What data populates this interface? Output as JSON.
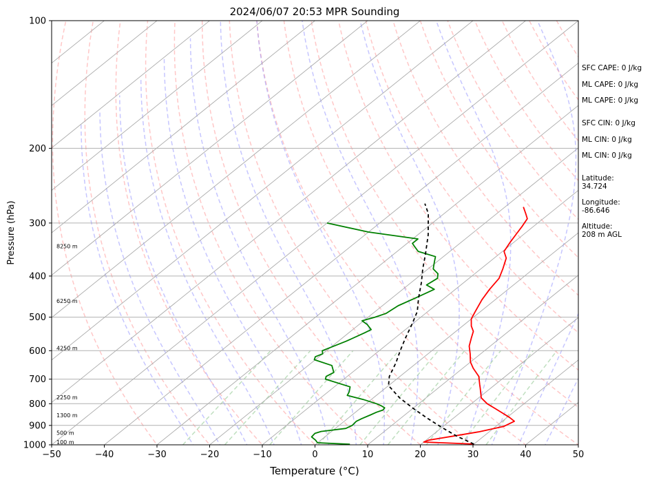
{
  "chart_data": {
    "type": "line",
    "subtype": "skew-t log-p sounding",
    "title": "2024/06/07 20:53 MPR Sounding",
    "xlabel": "Temperature (°C)",
    "ylabel": "Pressure (hPa)",
    "xlim": [
      -50,
      50
    ],
    "ylim": [
      1000,
      100
    ],
    "y_scale": "log",
    "x_ticks": [
      -50,
      -40,
      -30,
      -20,
      -10,
      0,
      10,
      20,
      30,
      40,
      50
    ],
    "y_ticks": [
      100,
      200,
      300,
      400,
      500,
      600,
      700,
      800,
      900,
      1000
    ],
    "grid": "horizontal isobars",
    "colors": {
      "temperature": "#ff0000",
      "dewpoint": "#008000",
      "parcel": "#000000",
      "isotherm": "#aaaaaa",
      "dry_adiabat": "#ff9999",
      "moist_adiabat": "#8080ff",
      "mixing_ratio": "#80c080"
    },
    "series": [
      {
        "key": "temperature",
        "points": [
          [
            30,
            996
          ],
          [
            20,
            985
          ],
          [
            20.5,
            975
          ],
          [
            24,
            955
          ],
          [
            28,
            932
          ],
          [
            31.5,
            905
          ],
          [
            32.3,
            880
          ],
          [
            30.5,
            862
          ],
          [
            28.5,
            845
          ],
          [
            25.5,
            820
          ],
          [
            23,
            800
          ],
          [
            20.5,
            775
          ],
          [
            18,
            735
          ],
          [
            17,
            720
          ],
          [
            15,
            690
          ],
          [
            12,
            660
          ],
          [
            10,
            638
          ],
          [
            8,
            610
          ],
          [
            6,
            585
          ],
          [
            4.5,
            560
          ],
          [
            3.3,
            540
          ],
          [
            1.7,
            525
          ],
          [
            0,
            505
          ],
          [
            -1,
            485
          ],
          [
            -2.5,
            455
          ],
          [
            -3.5,
            430
          ],
          [
            -4.3,
            405
          ],
          [
            -5.8,
            385
          ],
          [
            -7.7,
            363
          ],
          [
            -9.7,
            350
          ],
          [
            -10.7,
            333
          ],
          [
            -11.5,
            318
          ],
          [
            -12.2,
            305
          ],
          [
            -13,
            293
          ],
          [
            -14.5,
            285
          ],
          [
            -16.5,
            275
          ]
        ]
      },
      {
        "key": "dewpoint",
        "points": [
          [
            6.5,
            997
          ],
          [
            0,
            989
          ],
          [
            -1,
            975
          ],
          [
            -2.5,
            958
          ],
          [
            -2.7,
            940
          ],
          [
            -2,
            930
          ],
          [
            2,
            915
          ],
          [
            2.5,
            900
          ],
          [
            2.3,
            880
          ],
          [
            2.7,
            868
          ],
          [
            3.5,
            850
          ],
          [
            4,
            838
          ],
          [
            4.7,
            828
          ],
          [
            4.5,
            818
          ],
          [
            3.5,
            810
          ],
          [
            2,
            800
          ],
          [
            -1.5,
            782
          ],
          [
            -5.5,
            765
          ],
          [
            -6,
            750
          ],
          [
            -7,
            730
          ],
          [
            -13.5,
            700
          ],
          [
            -14,
            690
          ],
          [
            -13.5,
            675
          ],
          [
            -15.5,
            650
          ],
          [
            -20.2,
            630
          ],
          [
            -20.7,
            620
          ],
          [
            -20,
            610
          ],
          [
            -20.8,
            600
          ],
          [
            -18.5,
            570
          ],
          [
            -17,
            545
          ],
          [
            -16.5,
            535
          ],
          [
            -18.5,
            520
          ],
          [
            -20.3,
            510
          ],
          [
            -18.7,
            500
          ],
          [
            -17.5,
            490
          ],
          [
            -17,
            470
          ],
          [
            -15.5,
            450
          ],
          [
            -14,
            430
          ],
          [
            -16.5,
            420
          ],
          [
            -16,
            405
          ],
          [
            -17,
            395
          ],
          [
            -19,
            385
          ],
          [
            -19.5,
            380
          ],
          [
            -20.5,
            370
          ],
          [
            -21.5,
            360
          ],
          [
            -26,
            350
          ],
          [
            -28,
            340
          ],
          [
            -29,
            335
          ],
          [
            -29,
            327
          ],
          [
            -40,
            315
          ],
          [
            -50,
            300
          ]
        ]
      },
      {
        "key": "parcel",
        "points": [
          [
            30,
            996
          ],
          [
            25,
            955
          ],
          [
            20,
            910
          ],
          [
            15,
            865
          ],
          [
            10,
            820
          ],
          [
            5,
            775
          ],
          [
            0,
            725
          ],
          [
            -2,
            690
          ],
          [
            -4,
            640
          ],
          [
            -6,
            600
          ],
          [
            -8,
            560
          ],
          [
            -10,
            520
          ],
          [
            -12,
            485
          ],
          [
            -15,
            450
          ],
          [
            -18,
            415
          ],
          [
            -21,
            385
          ],
          [
            -24,
            355
          ],
          [
            -28,
            320
          ],
          [
            -33,
            285
          ],
          [
            -36,
            270
          ]
        ]
      }
    ],
    "height_labels": [
      "100 m",
      "500 m",
      "1300 m",
      "2250 m",
      "4250 m",
      "6250 m",
      "8250 m"
    ],
    "height_label_pressures": [
      1000,
      950,
      865,
      785,
      600,
      465,
      345
    ],
    "annotations": [
      "SFC CAPE: 0 J/kg",
      "ML CAPE: 0 J/kg",
      "ML CAPE: 0 J/kg",
      "SFC CIN: 0 J/kg",
      "ML CIN: 0 J/kg",
      "ML CIN: 0 J/kg",
      "Latitude:",
      "34.724",
      "Longitude:",
      "-86.646",
      "Altitude:",
      "208 m AGL"
    ]
  }
}
